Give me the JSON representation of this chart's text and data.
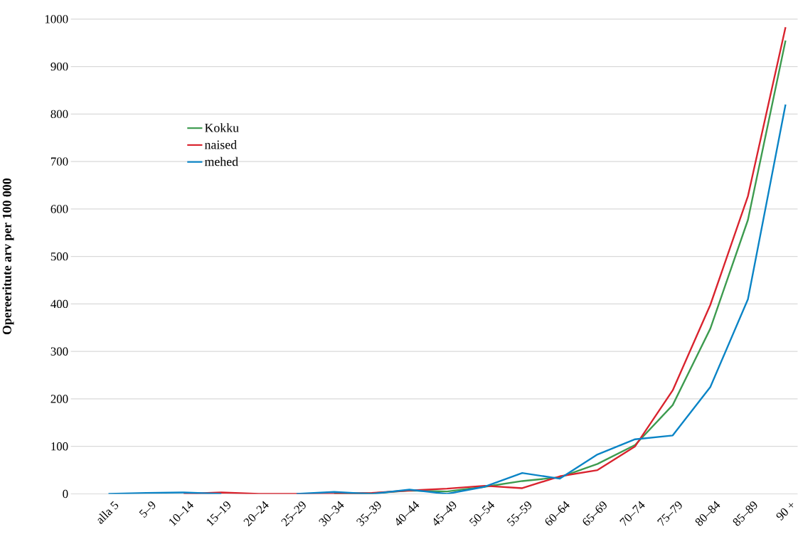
{
  "chart_data": {
    "type": "line",
    "ylabel": "Opereeritute arv per 100 000",
    "categories": [
      "alla 5",
      "5–9",
      "10–14",
      "15–19",
      "20–24",
      "25–29",
      "30–34",
      "35–39",
      "40–44",
      "45–49",
      "50–54",
      "55–59",
      "60–64",
      "65–69",
      "70–74",
      "75–79",
      "80–84",
      "85–89",
      "90 +"
    ],
    "series": [
      {
        "name": "Kokku",
        "color": "#3d9b4f",
        "values": [
          null,
          null,
          null,
          null,
          null,
          null,
          1,
          1,
          7,
          5,
          15,
          27,
          35,
          63,
          103,
          187,
          348,
          577,
          955
        ]
      },
      {
        "name": "naised",
        "color": "#d9232e",
        "values": [
          null,
          null,
          0,
          3,
          0,
          0,
          0,
          2,
          7,
          11,
          17,
          12,
          37,
          50,
          100,
          218,
          398,
          627,
          983
        ]
      },
      {
        "name": "mehed",
        "color": "#0a84c6",
        "values": [
          0,
          2,
          3,
          0,
          null,
          0,
          4,
          0,
          9,
          0,
          15,
          44,
          32,
          83,
          115,
          123,
          225,
          410,
          820
        ]
      }
    ],
    "ylim": [
      0,
      1000
    ],
    "yticks": [
      0,
      100,
      200,
      300,
      400,
      500,
      600,
      700,
      800,
      900,
      1000
    ],
    "grid": "y",
    "legend": "top left",
    "marker": "none",
    "line_style": "solid"
  }
}
